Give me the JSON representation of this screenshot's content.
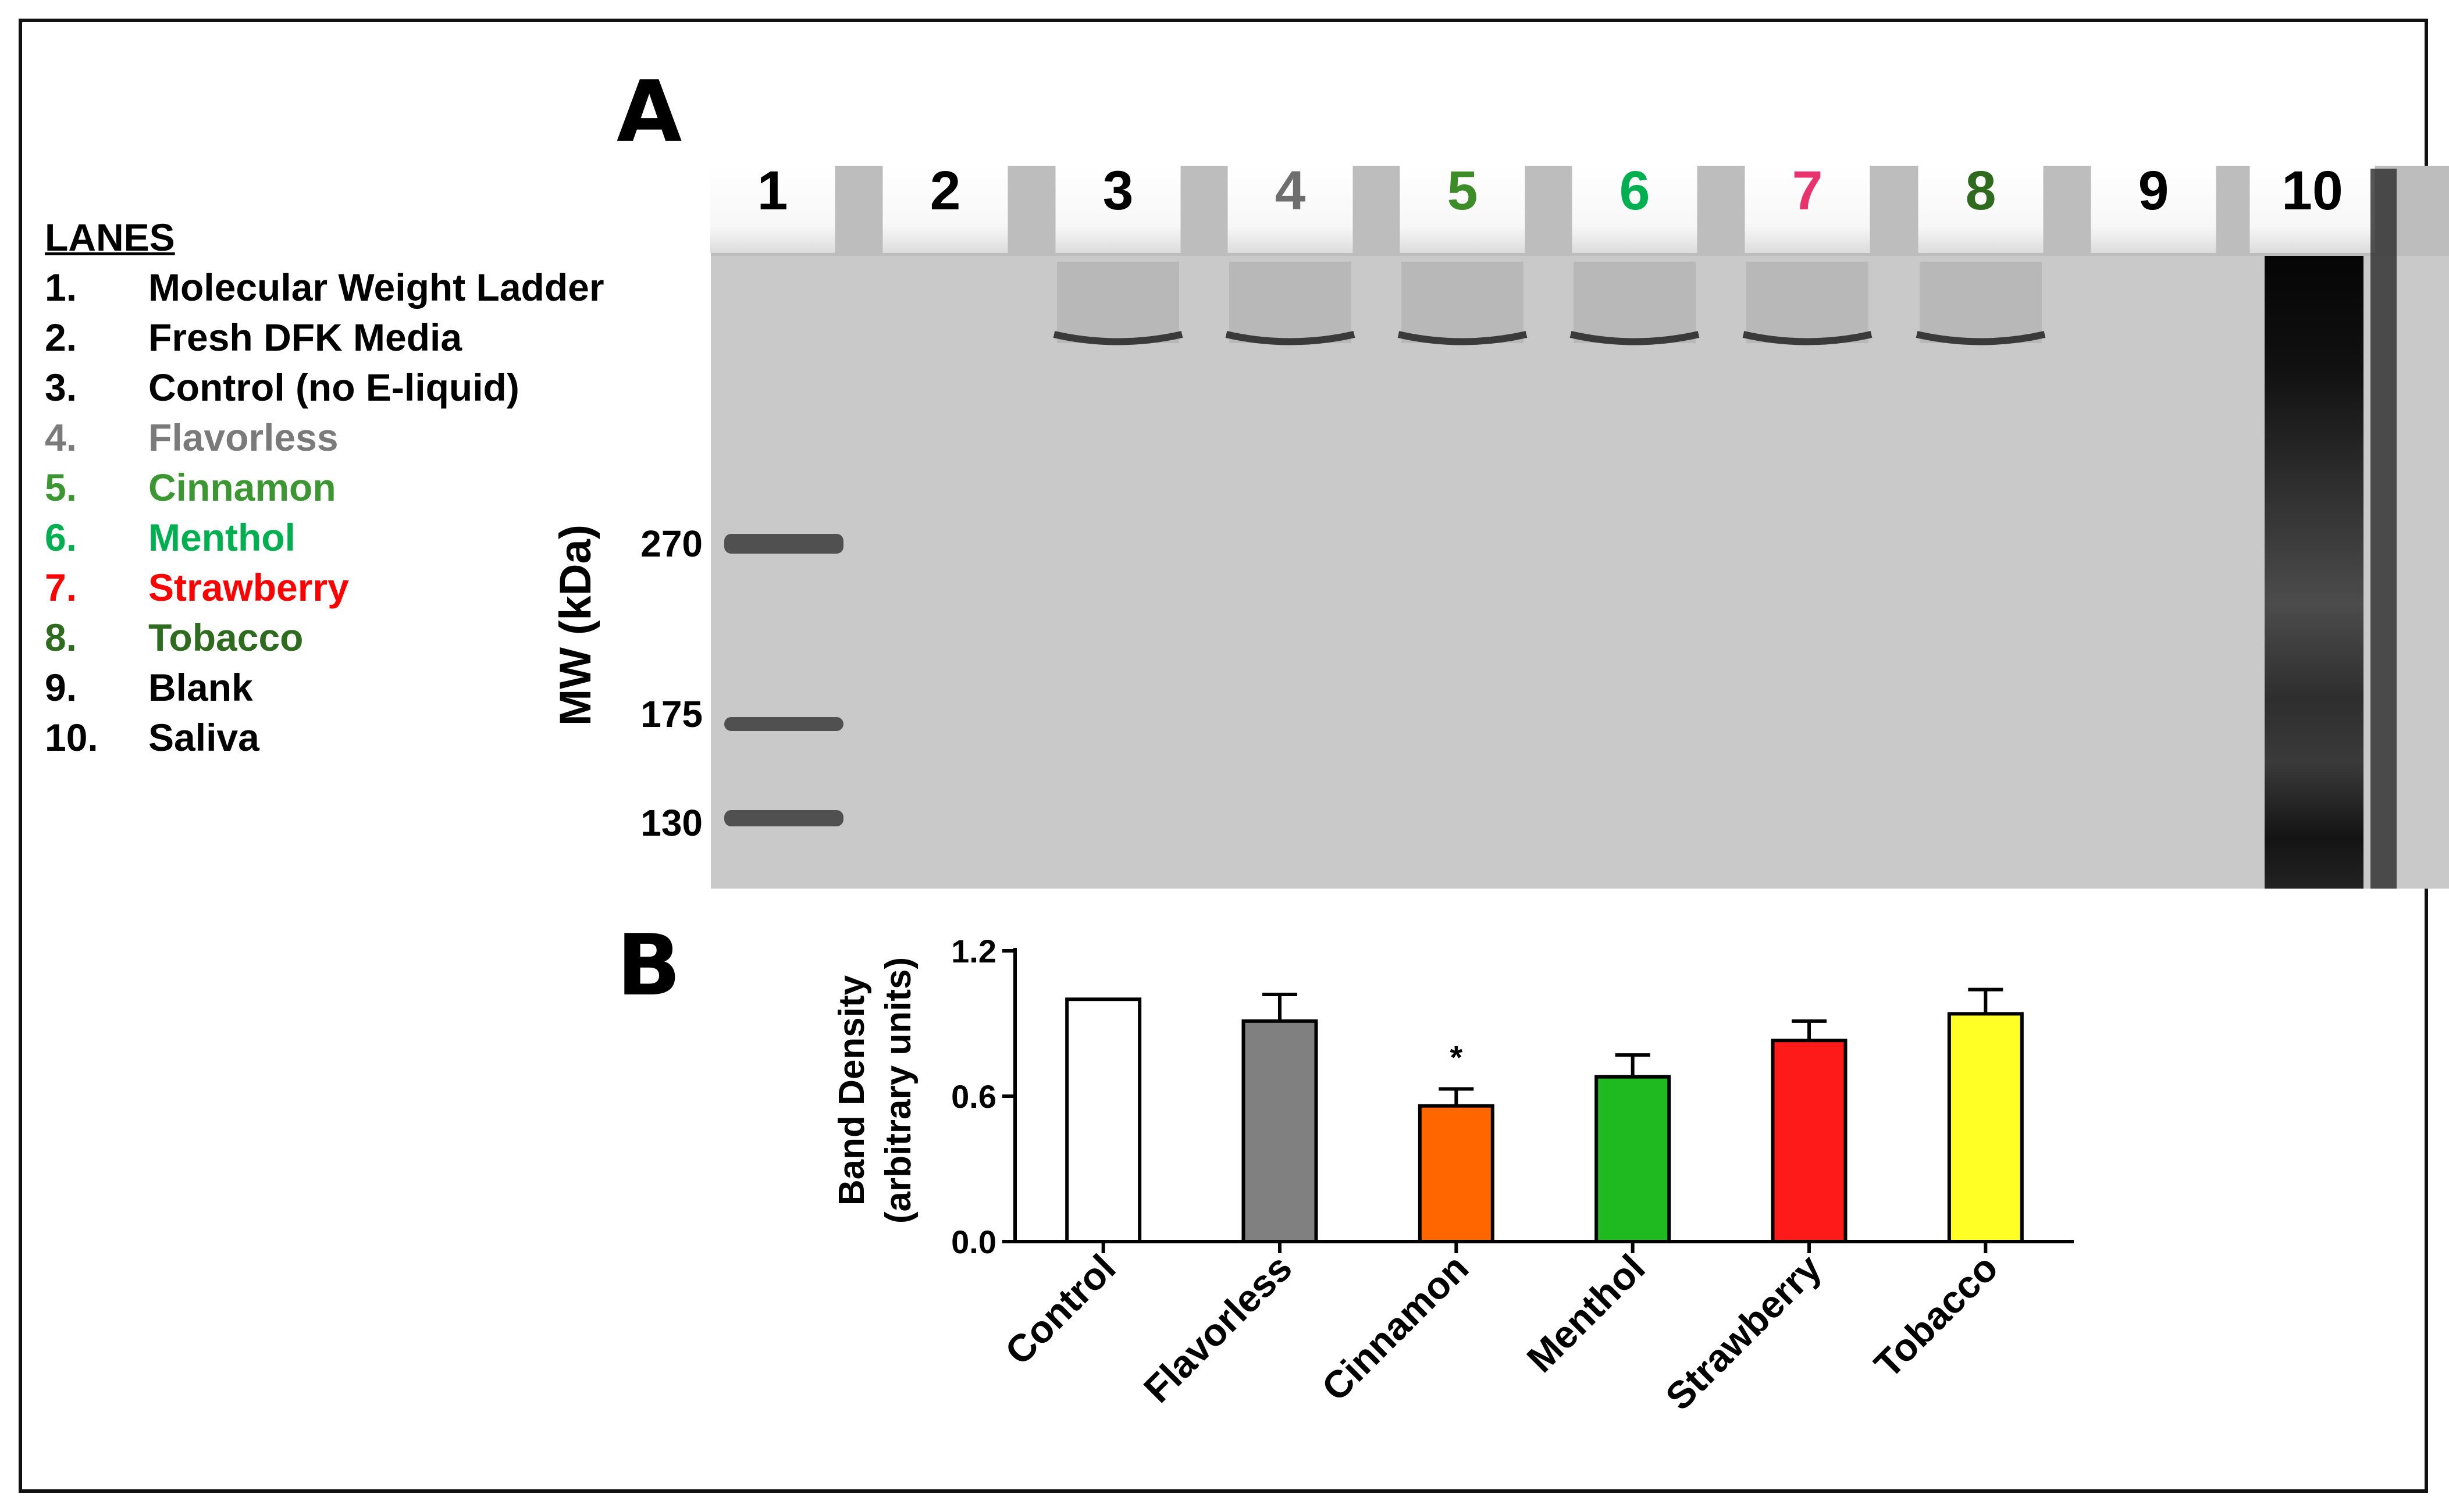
{
  "panel_a": {
    "letter": "A",
    "lanes_heading": "LANES",
    "lanes": [
      {
        "num": "1.",
        "label": "Molecular Weight Ladder",
        "color": "#000000"
      },
      {
        "num": "2.",
        "label": "Fresh DFK Media",
        "color": "#000000"
      },
      {
        "num": "3.",
        "label": "Control (no E-liquid)",
        "color": "#000000"
      },
      {
        "num": "4.",
        "label": "Flavorless",
        "color": "#7a7a7a"
      },
      {
        "num": "5.",
        "label": "Cinnamon",
        "color": "#3c9632"
      },
      {
        "num": "6.",
        "label": "Menthol",
        "color": "#00b050"
      },
      {
        "num": "7.",
        "label": "Strawberry",
        "color": "#ff0000"
      },
      {
        "num": "8.",
        "label": "Tobacco",
        "color": "#2e6b1e"
      },
      {
        "num": "9.",
        "label": "Blank",
        "color": "#000000"
      },
      {
        "num": "10.",
        "label": "Saliva",
        "color": "#000000"
      }
    ],
    "gel": {
      "lane_numbers": [
        {
          "text": "1",
          "color": "#000000"
        },
        {
          "text": "2",
          "color": "#000000"
        },
        {
          "text": "3",
          "color": "#000000"
        },
        {
          "text": "4",
          "color": "#6e6e6e"
        },
        {
          "text": "5",
          "color": "#3c8c28"
        },
        {
          "text": "6",
          "color": "#00b050"
        },
        {
          "text": "7",
          "color": "#e8336e"
        },
        {
          "text": "8",
          "color": "#2e6b1e"
        },
        {
          "text": "9",
          "color": "#000000"
        },
        {
          "text": "10",
          "color": "#000000"
        }
      ],
      "y_axis_label": "MW (kDa)",
      "markers": [
        "270",
        "175",
        "130"
      ]
    }
  },
  "chart_data": {
    "type": "bar",
    "panel_letter": "B",
    "categories": [
      "Control",
      "Flavorless",
      "Cinnamon",
      "Menthol",
      "Strawberry",
      "Tobacco"
    ],
    "values": [
      1.0,
      0.91,
      0.56,
      0.68,
      0.83,
      0.94
    ],
    "errors": [
      0.0,
      0.11,
      0.07,
      0.09,
      0.08,
      0.1
    ],
    "colors": [
      "#ffffff",
      "#808080",
      "#ff6600",
      "#1fba1f",
      "#ff1a1a",
      "#ffff26"
    ],
    "significance": [
      "",
      "",
      "*",
      "",
      "",
      ""
    ],
    "ylabel_line1": "Band Density",
    "ylabel_line2": "(arbitrary units)",
    "ylim": [
      0,
      1.2
    ],
    "yticks": [
      "0.0",
      "0.6",
      "1.2"
    ],
    "grid": false,
    "legend": "none"
  }
}
